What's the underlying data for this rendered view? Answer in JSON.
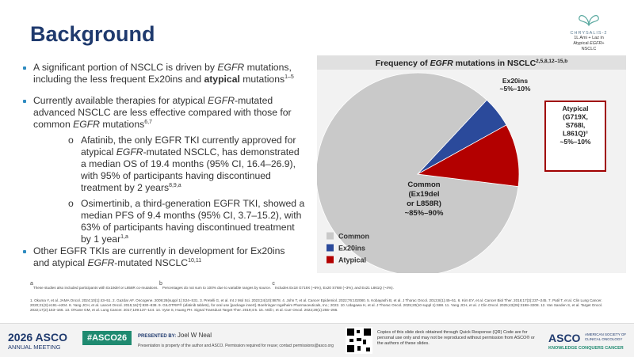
{
  "header": {
    "title": "Background",
    "logo": "CHRYSALIS-2",
    "logo_caption": [
      "1L Ami + Laz in",
      "Atypical ",
      "EGFR",
      "+",
      "NSCLC"
    ]
  },
  "bullets": [
    {
      "parts": [
        "A significant portion of NSCLC is driven by ",
        "EGFR",
        " mutations, including the less frequent Ex20ins and ",
        "atypical",
        " mutations",
        "1–5"
      ]
    },
    {
      "parts": [
        "Currently available therapies for atypical ",
        "EGFR",
        "-mutated advanced NSCLC are less effective compared with those for common ",
        "EGFR",
        " mutations",
        "6,7"
      ],
      "sub": [
        {
          "parts": [
            "Afatinib, the only EGFR TKI currently approved for atypical ",
            "EGFR",
            "-mutated NSCLC, has demonstrated a median OS of 19.4 months (95% CI, 16.4–26.9), with 95% of participants having discontinued treatment by 2 years",
            "8,9,a"
          ]
        },
        {
          "parts": [
            "Osimertinib, a third-generation EGFR TKI, showed a median PFS of 9.4 months (95% CI, 3.7–15.2), with 63% of participants having discontinued treatment by 1 year",
            "1,a"
          ]
        }
      ]
    },
    {
      "parts": [
        "Other EGFR TKIs are currently in development for Ex20ins and atypical ",
        "EGFR",
        "-mutated NSCLC",
        "10,11"
      ]
    }
  ],
  "chart_data": {
    "type": "pie",
    "title": [
      "Frequency of ",
      "EGFR",
      " mutations in NSCLC",
      "2,5,8,12–15,b"
    ],
    "categories": [
      "Common",
      "Ex20ins",
      "Atypical"
    ],
    "values": [
      85,
      5,
      10
    ],
    "colors": [
      "#c9c9c9",
      "#2b4a9b",
      "#b30000"
    ],
    "legend": "bottom-left",
    "annotations": [
      {
        "lines": [
          "Common",
          "(Ex19del",
          "or L858R)",
          "~85%–90%"
        ]
      },
      {
        "lines": [
          "Ex20ins",
          "~5%–10%"
        ]
      },
      {
        "lines": [
          "Atypical",
          "(G719X,",
          "S768I,",
          "L861Q)",
          "~5%–10%"
        ],
        "note": "c"
      }
    ]
  },
  "footnotes": {
    "notes": [
      "a",
      "These studies also included participants with Ex19del or L858R co-mutations. ",
      "b",
      "Percentages do not sum to 100% due to variable ranges by source. ",
      "c",
      "Includes Ex18 G719X (~5%), Ex20 S768I (~3%), and Ex21 L861Q (~4%)."
    ],
    "references": "1. Okuma Y, et al. JAMA Oncol. 2024;10(1):43–51. 2. Gazdar AF. Oncogene. 2009;28(suppl 1):S24–S31. 3. Pretelli G, et al. Int J Mol Sci. 2023;24(10):8878. 4. John T, et al. Cancer Epidemiol. 2022;76:102080. 5. Kobayashi B, et al. J Thorac Oncol. 2013;8(1):45–51. 6. Kim EY, et al. Cancer Biol Ther. 2016;17(3):237–245. 7. Patil T, et al. Clin Lung Cancer. 2020;21(3):e191–e204. 8. Yang JCH, et al. Lancet Oncol. 2015;16(7):830–838. 9. GILOTRIF® (afatinib tablets), for oral use [package insert]. Boehringer Ingelheim Pharmaceuticals, Inc.; 2022. 10. Udagawa H, et al. J Thorac Oncol. 2025;20(10 suppl 1):S88. 11. Yang JCH, et al. J Clin Oncol. 2025;43(29):3198–3208. 12. Van Sanden S, et al. Target Oncol. 2022;17(2):153–166. 13. O'Kane GM, et al. Lung Cancer. 2017;109:137–144. 14. Vyse S, Huang PH. Signal Transduct Target Ther. 2019;4:5. 15. Attili I, et al. Curr Oncol. 2022;29(1):255–266."
  },
  "footer": {
    "meeting_year": "2026",
    "meeting_org": "ASCO",
    "meeting_name": "ANNUAL MEETING",
    "hashtag": "#ASCO26",
    "presented_by_label": "PRESENTED BY:",
    "presenter": "Joel W Neal",
    "property_note": "Presentation is property of the author and ASCO. Permission required for reuse; contact permissions@asco.org",
    "qr_note": "Copies of this slide deck obtained through Quick Response (QR) Code are for personal use only and may not be reproduced without permission from ASCO® or the authors of these slides.",
    "org_logo": "ASCO",
    "org_name": [
      "AMERICAN SOCIETY OF",
      "CLINICAL ONCOLOGY"
    ],
    "org_tagline": "KNOWLEDGE CONQUERS CANCER"
  }
}
